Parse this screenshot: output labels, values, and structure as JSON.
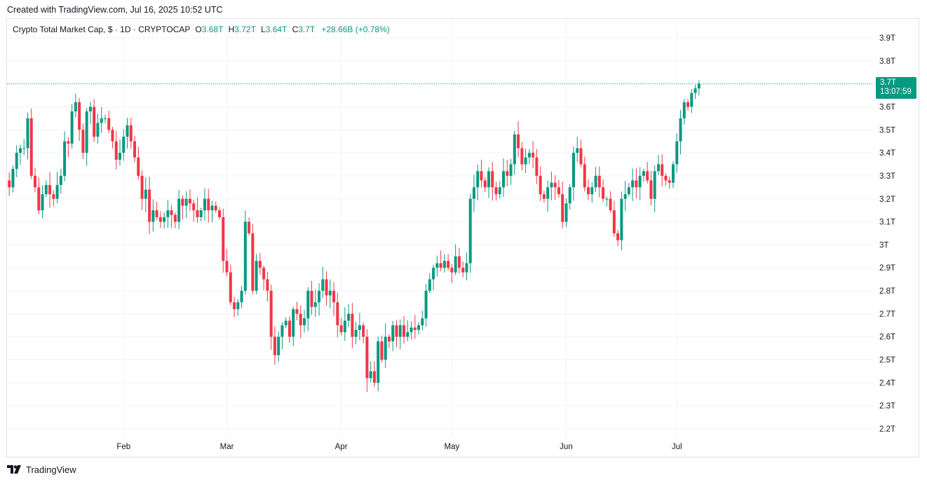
{
  "header": {
    "created_text": "Created with TradingView.com, Jul 16, 2025 10:52 UTC"
  },
  "legend": {
    "symbol": "Crypto Total Market Cap, $ · 1D · CRYPTOCAP",
    "open_label": "O",
    "open_value": "3.68T",
    "high_label": "H",
    "high_value": "3.72T",
    "low_label": "L",
    "low_value": "3.64T",
    "close_label": "C",
    "close_value": "3.7T",
    "change": "+28.66B (+0.78%)"
  },
  "price_badge": {
    "price": "3.7T",
    "countdown": "13:07:59"
  },
  "footer": {
    "brand": "TradingView"
  },
  "colors": {
    "up": "#089981",
    "down": "#f23645",
    "grid": "#f0f3fa",
    "badge": "#089981"
  },
  "chart_data": {
    "type": "candlestick",
    "title": "Crypto Total Market Cap, $ · 1D · CRYPTOCAP",
    "unit": "T",
    "ylim": [
      2.16,
      3.98
    ],
    "y_ticks": [
      "2.2T",
      "2.3T",
      "2.4T",
      "2.5T",
      "2.6T",
      "2.7T",
      "2.8T",
      "2.9T",
      "3T",
      "3.1T",
      "3.2T",
      "3.3T",
      "3.4T",
      "3.5T",
      "3.6T",
      "3.7T",
      "3.8T",
      "3.9T"
    ],
    "y_tick_values": [
      2.2,
      2.3,
      2.4,
      2.5,
      2.6,
      2.7,
      2.8,
      2.9,
      3.0,
      3.1,
      3.2,
      3.3,
      3.4,
      3.5,
      3.6,
      3.7,
      3.8,
      3.9
    ],
    "x_ticks": [
      {
        "label": "Feb",
        "index": 31
      },
      {
        "label": "Mar",
        "index": 59
      },
      {
        "label": "Apr",
        "index": 90
      },
      {
        "label": "May",
        "index": 120
      },
      {
        "label": "Jun",
        "index": 151
      },
      {
        "label": "Jul",
        "index": 181
      }
    ],
    "start_date": "2025-01-01",
    "last_price": 3.7,
    "closes": [
      3.25,
      3.33,
      3.4,
      3.42,
      3.42,
      3.55,
      3.3,
      3.25,
      3.15,
      3.22,
      3.26,
      3.22,
      3.2,
      3.26,
      3.3,
      3.45,
      3.44,
      3.58,
      3.62,
      3.5,
      3.4,
      3.58,
      3.6,
      3.47,
      3.53,
      3.55,
      3.55,
      3.5,
      3.45,
      3.37,
      3.4,
      3.47,
      3.52,
      3.45,
      3.38,
      3.3,
      3.2,
      3.24,
      3.1,
      3.15,
      3.12,
      3.1,
      3.12,
      3.15,
      3.13,
      3.1,
      3.2,
      3.17,
      3.2,
      3.18,
      3.15,
      3.12,
      3.15,
      3.2,
      3.15,
      3.17,
      3.15,
      3.12,
      2.93,
      2.88,
      2.75,
      2.72,
      2.75,
      2.8,
      3.1,
      3.05,
      2.8,
      2.93,
      2.9,
      2.85,
      2.8,
      2.6,
      2.52,
      2.6,
      2.65,
      2.67,
      2.6,
      2.72,
      2.7,
      2.65,
      2.68,
      2.8,
      2.73,
      2.75,
      2.8,
      2.85,
      2.78,
      2.8,
      2.75,
      2.65,
      2.62,
      2.67,
      2.7,
      2.6,
      2.63,
      2.65,
      2.6,
      2.42,
      2.45,
      2.4,
      2.58,
      2.5,
      2.6,
      2.58,
      2.65,
      2.6,
      2.65,
      2.6,
      2.62,
      2.64,
      2.63,
      2.65,
      2.68,
      2.8,
      2.85,
      2.9,
      2.92,
      2.9,
      2.93,
      2.9,
      2.88,
      2.95,
      2.9,
      2.88,
      2.92,
      3.2,
      3.25,
      3.32,
      3.28,
      3.25,
      3.32,
      3.25,
      3.22,
      3.25,
      3.32,
      3.3,
      3.35,
      3.48,
      3.42,
      3.35,
      3.38,
      3.4,
      3.38,
      3.3,
      3.22,
      3.2,
      3.25,
      3.27,
      3.25,
      3.22,
      3.1,
      3.18,
      3.25,
      3.4,
      3.42,
      3.35,
      3.25,
      3.22,
      3.25,
      3.3,
      3.25,
      3.2,
      3.2,
      3.15,
      3.05,
      3.02,
      3.2,
      3.22,
      3.25,
      3.28,
      3.25,
      3.3,
      3.32,
      3.28,
      3.2,
      3.32,
      3.35,
      3.3,
      3.28,
      3.27,
      3.35,
      3.45,
      3.55,
      3.62,
      3.6,
      3.66,
      3.68,
      3.7
    ]
  }
}
